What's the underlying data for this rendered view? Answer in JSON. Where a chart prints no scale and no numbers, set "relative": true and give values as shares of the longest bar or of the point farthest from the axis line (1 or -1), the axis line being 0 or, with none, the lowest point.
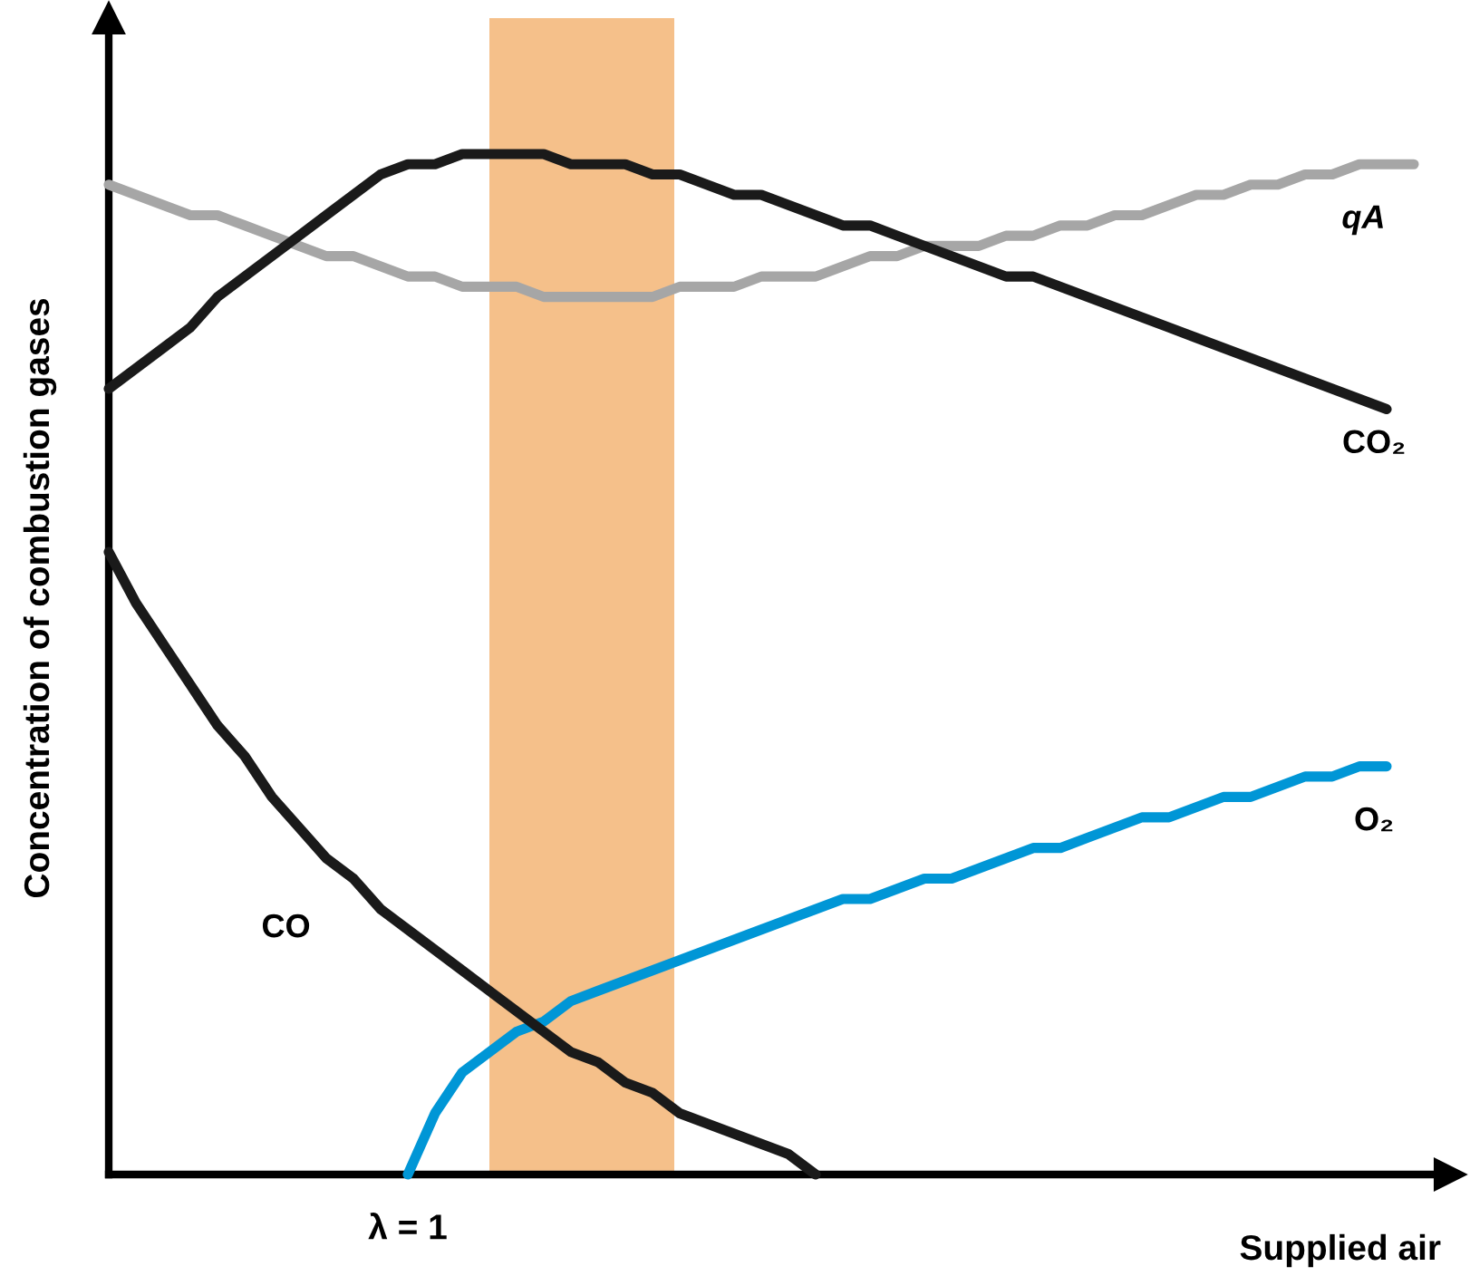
{
  "chart_data": {
    "type": "line",
    "relative": true,
    "xlabel": "Supplied air",
    "ylabel": "Concentration of combustion gases",
    "categories": [
      null,
      null,
      null,
      null,
      null,
      null,
      null,
      null,
      null,
      null,
      null,
      null,
      null,
      null,
      null,
      null,
      null,
      null,
      null,
      null,
      null,
      null,
      null,
      null,
      null,
      null,
      null,
      null,
      null,
      null,
      null,
      null,
      null,
      null,
      null,
      null,
      null,
      null,
      null,
      null,
      null,
      null,
      null,
      null,
      null,
      null,
      null,
      null,
      null
    ],
    "series": [
      {
        "name": "qA",
        "color": "#a6a6a6",
        "values": [
          0.97,
          0.96,
          0.95,
          0.94,
          0.94,
          0.93,
          0.92,
          0.91,
          0.9,
          0.9,
          0.89,
          0.88,
          0.88,
          0.87,
          0.87,
          0.87,
          0.86,
          0.86,
          0.86,
          0.86,
          0.86,
          0.87,
          0.87,
          0.87,
          0.88,
          0.88,
          0.88,
          0.89,
          0.9,
          0.9,
          0.91,
          0.91,
          0.91,
          0.92,
          0.92,
          0.93,
          0.93,
          0.94,
          0.94,
          0.95,
          0.96,
          0.96,
          0.97,
          0.97,
          0.98,
          0.98,
          0.99,
          0.99,
          0.99
        ]
      },
      {
        "name": "CO₂",
        "color": "#1a1a1a",
        "values": [
          0.77,
          0.79,
          0.81,
          0.83,
          0.86,
          0.88,
          0.9,
          0.92,
          0.94,
          0.96,
          0.98,
          0.99,
          0.99,
          1.0,
          1.0,
          1.0,
          1.0,
          0.99,
          0.99,
          0.99,
          0.98,
          0.98,
          0.97,
          0.96,
          0.96,
          0.95,
          0.94,
          0.93,
          0.93,
          0.92,
          0.91,
          0.9,
          0.89,
          0.88,
          0.88,
          0.87,
          0.86,
          0.85,
          0.84,
          0.83,
          0.82,
          0.81,
          0.8,
          0.79,
          0.78,
          0.77,
          0.76,
          0.75,
          null
        ]
      },
      {
        "name": "O₂",
        "color": "#0096d6",
        "values": [
          null,
          null,
          null,
          null,
          null,
          null,
          null,
          null,
          null,
          null,
          null,
          0,
          0.06,
          0.1,
          0.12,
          0.14,
          0.15,
          0.17,
          0.18,
          0.19,
          0.2,
          0.21,
          0.22,
          0.23,
          0.24,
          0.25,
          0.26,
          0.27,
          0.27,
          0.28,
          0.29,
          0.29,
          0.3,
          0.31,
          0.32,
          0.32,
          0.33,
          0.34,
          0.35,
          0.35,
          0.36,
          0.37,
          0.37,
          0.38,
          0.39,
          0.39,
          0.4,
          0.4,
          null
        ]
      },
      {
        "name": "CO",
        "color": "#1a1a1a",
        "values": [
          0.61,
          0.56,
          0.52,
          0.48,
          0.44,
          0.41,
          0.37,
          0.34,
          0.31,
          0.29,
          0.26,
          0.24,
          0.22,
          0.2,
          0.18,
          0.16,
          0.14,
          0.12,
          0.11,
          0.09,
          0.08,
          0.06,
          0.05,
          0.04,
          0.03,
          0.02,
          0,
          null,
          null,
          null,
          null,
          null,
          null,
          null,
          null,
          null,
          null,
          null,
          null,
          null,
          null,
          null,
          null,
          null,
          null,
          null,
          null,
          null,
          null
        ]
      }
    ],
    "annotations": [
      "λ = 1"
    ],
    "legend": false
  }
}
